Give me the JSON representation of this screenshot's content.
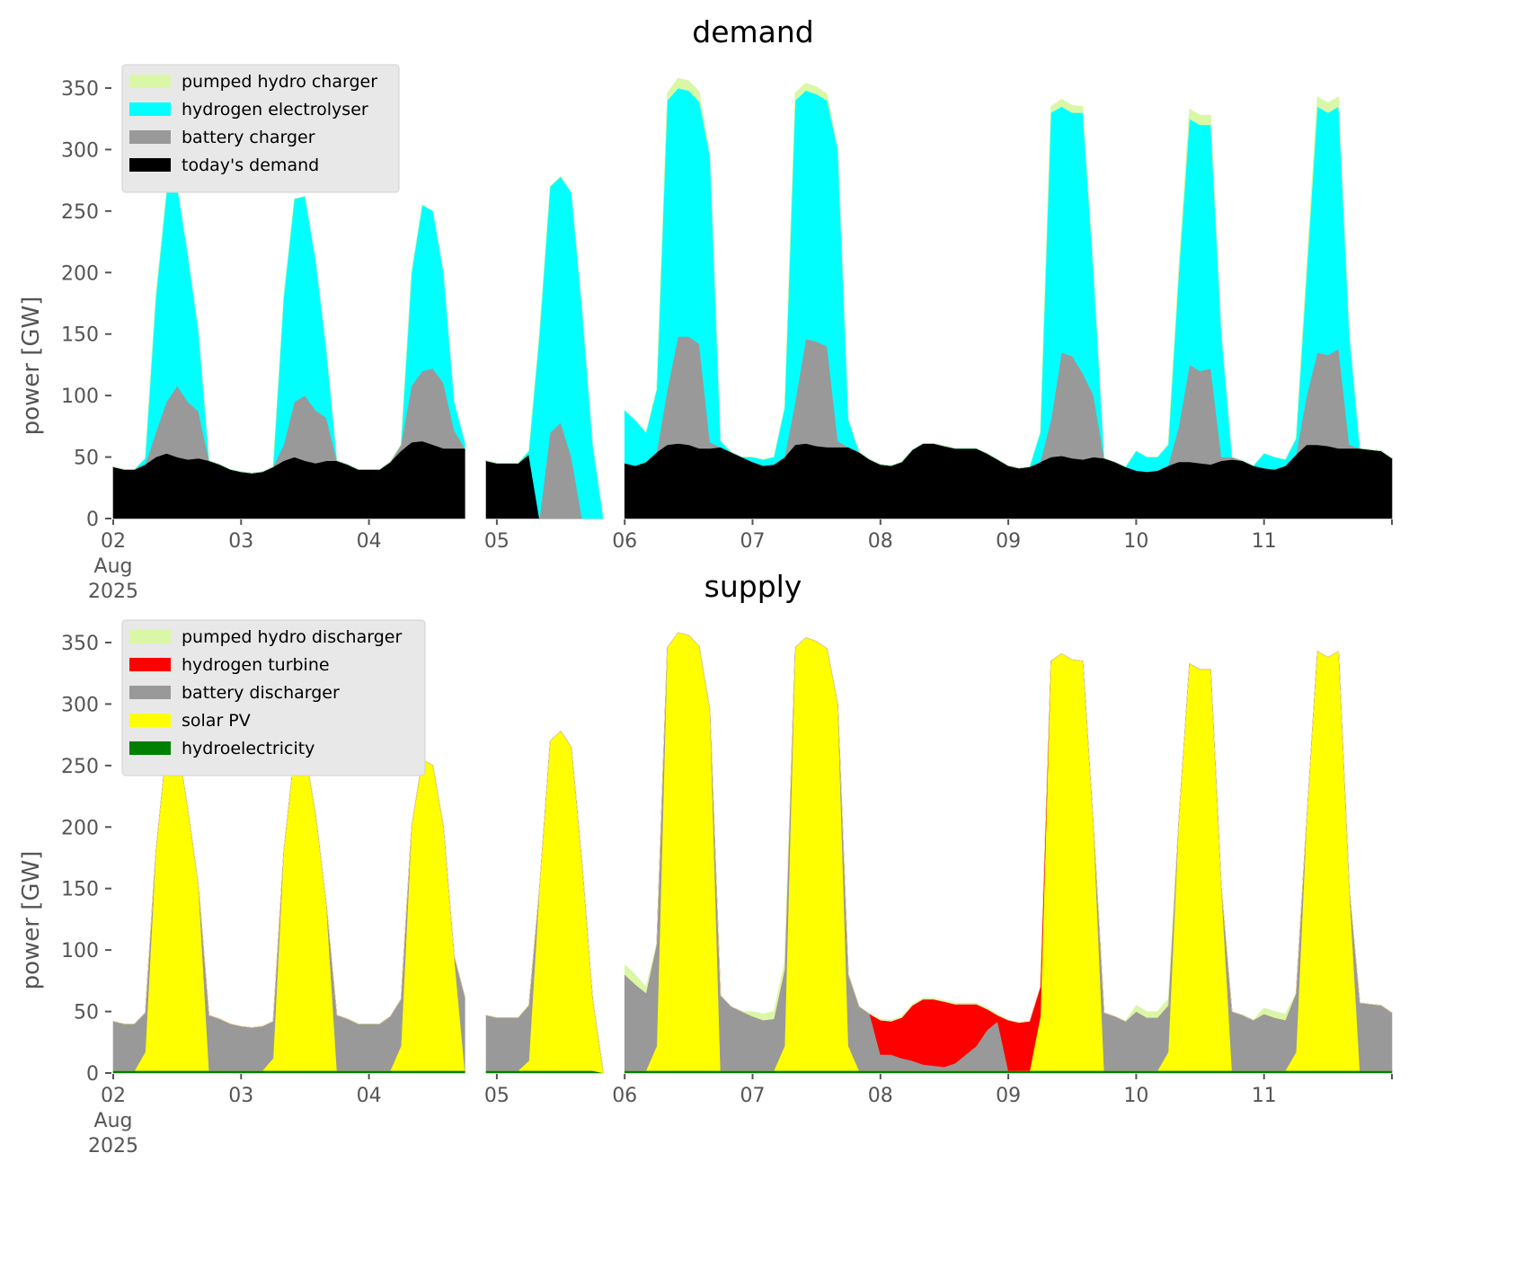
{
  "chart_data": [
    {
      "type": "area",
      "stacked": true,
      "title": "demand",
      "xlabel": "",
      "ylabel": "power [GW]",
      "ylim": [
        0,
        370
      ],
      "yticks": [
        0,
        50,
        100,
        150,
        200,
        250,
        300,
        350
      ],
      "xticks": [
        "02\nAug\n2025",
        "03",
        "04",
        "05",
        "06",
        "07",
        "08",
        "09",
        "10",
        "11"
      ],
      "x_unit": "hours since 2025-08-02 00:00 (2-hourly)",
      "x_start": 0,
      "x_step": 2,
      "legend_position": "top-left",
      "series": [
        {
          "name": "today's demand",
          "color": "#000000",
          "values": [
            42,
            40,
            40,
            44,
            50,
            53,
            50,
            48,
            49,
            47,
            44,
            40,
            38,
            37,
            38,
            42,
            47,
            50,
            47,
            45,
            47,
            47,
            44,
            40,
            40,
            40,
            46,
            55,
            62,
            63,
            60,
            57,
            57,
            57,
            null,
            47,
            45,
            45,
            45,
            52,
            0,
            0,
            0,
            0,
            0,
            0,
            0,
            null,
            45,
            43,
            46,
            54,
            60,
            61,
            60,
            57,
            57,
            58,
            54,
            50,
            46,
            43,
            44,
            50,
            60,
            61,
            59,
            58,
            58,
            58,
            54,
            48,
            44,
            43,
            46,
            56,
            61,
            61,
            59,
            57,
            57,
            57,
            53,
            48,
            43,
            41,
            42,
            46,
            50,
            51,
            49,
            48,
            50,
            49,
            46,
            42,
            39,
            38,
            39,
            43,
            46,
            46,
            45,
            44,
            47,
            48,
            47,
            43,
            41,
            40,
            43,
            52,
            60,
            60,
            59,
            57,
            57,
            57,
            56,
            55,
            49
          ]
        },
        {
          "name": "battery charger",
          "color": "#999999",
          "values": [
            0,
            0,
            0,
            0,
            20,
            42,
            58,
            47,
            38,
            0,
            0,
            0,
            0,
            0,
            0,
            0,
            13,
            45,
            53,
            43,
            35,
            0,
            0,
            0,
            0,
            0,
            0,
            5,
            46,
            57,
            62,
            53,
            15,
            0,
            null,
            0,
            0,
            0,
            0,
            0,
            0,
            70,
            78,
            50,
            0,
            0,
            0,
            null,
            0,
            0,
            0,
            0,
            45,
            87,
            88,
            85,
            5,
            0,
            0,
            0,
            0,
            0,
            0,
            0,
            35,
            85,
            85,
            82,
            5,
            0,
            0,
            0,
            0,
            0,
            0,
            0,
            0,
            0,
            0,
            0,
            0,
            0,
            0,
            0,
            0,
            0,
            0,
            0,
            30,
            84,
            83,
            70,
            50,
            0,
            0,
            0,
            0,
            0,
            0,
            0,
            29,
            79,
            75,
            78,
            3,
            2,
            0,
            0,
            0,
            0,
            0,
            0,
            40,
            75,
            74,
            81,
            3,
            0,
            0,
            0,
            0
          ]
        },
        {
          "name": "hydrogen electrolyser",
          "color": "#00ffff",
          "values": [
            0,
            0,
            0,
            5,
            110,
            170,
            162,
            120,
            65,
            0,
            0,
            0,
            0,
            0,
            0,
            0,
            120,
            165,
            162,
            122,
            55,
            0,
            0,
            0,
            0,
            0,
            0,
            0,
            92,
            135,
            128,
            90,
            23,
            5,
            null,
            0,
            0,
            0,
            0,
            3,
            150,
            200,
            200,
            215,
            170,
            60,
            0,
            null,
            43,
            37,
            24,
            51,
            235,
            202,
            200,
            197,
            233,
            5,
            0,
            0,
            4,
            5,
            6,
            40,
            245,
            202,
            201,
            200,
            237,
            22,
            0,
            0,
            0,
            0,
            0,
            0,
            0,
            0,
            0,
            0,
            0,
            0,
            0,
            0,
            0,
            0,
            0,
            24,
            250,
            200,
            198,
            212,
            100,
            0,
            0,
            0,
            16,
            12,
            11,
            17,
            125,
            200,
            200,
            198,
            100,
            0,
            0,
            0,
            12,
            10,
            5,
            13,
            100,
            200,
            197,
            197,
            90,
            0,
            0,
            0,
            0
          ]
        },
        {
          "name": "pumped hydro charger",
          "color": "#d9f7a6",
          "values": [
            0,
            0,
            0,
            0,
            0,
            0,
            0,
            0,
            0,
            0,
            0,
            0,
            0,
            0,
            0,
            0,
            0,
            0,
            0,
            0,
            0,
            0,
            0,
            0,
            0,
            0,
            0,
            0,
            0,
            0,
            0,
            0,
            0,
            0,
            null,
            0,
            0,
            0,
            0,
            0,
            0,
            0,
            0,
            0,
            0,
            0,
            0,
            null,
            0,
            0,
            0,
            0,
            6,
            8,
            8,
            8,
            0,
            0,
            0,
            0,
            0,
            0,
            0,
            0,
            6,
            6,
            6,
            5,
            0,
            0,
            0,
            0,
            0,
            0,
            0,
            0,
            0,
            0,
            0,
            0,
            0,
            0,
            0,
            0,
            0,
            0,
            0,
            0,
            5,
            6,
            6,
            5,
            0,
            0,
            0,
            0,
            0,
            0,
            0,
            0,
            6,
            8,
            8,
            8,
            0,
            0,
            0,
            0,
            0,
            0,
            0,
            0,
            6,
            8,
            8,
            8,
            0,
            0,
            0,
            0,
            0
          ]
        }
      ]
    },
    {
      "type": "area",
      "stacked": true,
      "title": "supply",
      "xlabel": "",
      "ylabel": "power [GW]",
      "ylim": [
        0,
        370
      ],
      "yticks": [
        0,
        50,
        100,
        150,
        200,
        250,
        300,
        350
      ],
      "xticks": [
        "02\nAug\n2025",
        "03",
        "04",
        "05",
        "06",
        "07",
        "08",
        "09",
        "10",
        "11"
      ],
      "x_unit": "hours since 2025-08-02 00:00 (2-hourly)",
      "x_start": 0,
      "x_step": 2,
      "legend_position": "top-left",
      "series": [
        {
          "name": "hydroelectricity",
          "color": "#008000",
          "values": [
            2,
            2,
            2,
            2,
            2,
            2,
            2,
            2,
            2,
            2,
            2,
            2,
            2,
            2,
            2,
            2,
            2,
            2,
            2,
            2,
            2,
            2,
            2,
            2,
            2,
            2,
            2,
            2,
            2,
            2,
            2,
            2,
            2,
            2,
            null,
            2,
            2,
            2,
            2,
            2,
            2,
            2,
            2,
            2,
            2,
            2,
            0,
            null,
            2,
            2,
            2,
            2,
            2,
            2,
            2,
            2,
            2,
            2,
            2,
            2,
            2,
            2,
            2,
            2,
            2,
            2,
            2,
            2,
            2,
            2,
            2,
            2,
            2,
            2,
            2,
            2,
            2,
            2,
            2,
            2,
            2,
            2,
            2,
            2,
            2,
            2,
            2,
            2,
            2,
            2,
            2,
            2,
            2,
            2,
            2,
            2,
            2,
            2,
            2,
            2,
            2,
            2,
            2,
            2,
            2,
            2,
            2,
            2,
            2,
            2,
            2,
            2,
            2,
            2,
            2,
            2,
            2,
            2,
            2,
            2,
            2
          ]
        },
        {
          "name": "solar PV",
          "color": "#ffff00",
          "values": [
            0,
            0,
            0,
            15,
            178,
            263,
            268,
            213,
            150,
            0,
            0,
            0,
            0,
            0,
            0,
            10,
            178,
            258,
            260,
            208,
            135,
            0,
            0,
            0,
            0,
            0,
            0,
            20,
            198,
            253,
            248,
            198,
            93,
            0,
            null,
            0,
            0,
            0,
            0,
            8,
            148,
            268,
            276,
            263,
            168,
            58,
            0,
            null,
            0,
            0,
            0,
            20,
            344,
            356,
            354,
            345,
            293,
            0,
            0,
            0,
            0,
            0,
            0,
            20,
            344,
            352,
            349,
            343,
            298,
            20,
            0,
            0,
            0,
            0,
            0,
            0,
            0,
            0,
            0,
            0,
            0,
            0,
            0,
            0,
            0,
            0,
            0,
            44,
            333,
            339,
            334,
            333,
            198,
            0,
            0,
            0,
            0,
            0,
            0,
            15,
            204,
            331,
            326,
            326,
            148,
            0,
            0,
            0,
            0,
            0,
            0,
            15,
            204,
            341,
            336,
            341,
            148,
            0,
            0,
            0,
            0
          ]
        },
        {
          "name": "battery discharger",
          "color": "#999999",
          "values": [
            40,
            38,
            38,
            32,
            0,
            0,
            0,
            0,
            0,
            45,
            42,
            38,
            36,
            35,
            36,
            30,
            0,
            0,
            0,
            0,
            0,
            45,
            42,
            38,
            38,
            38,
            44,
            38,
            0,
            0,
            0,
            0,
            0,
            60,
            null,
            45,
            43,
            43,
            43,
            45,
            0,
            0,
            0,
            0,
            0,
            0,
            0,
            null,
            78,
            70,
            63,
            83,
            0,
            0,
            0,
            0,
            0,
            61,
            52,
            48,
            44,
            41,
            42,
            62,
            0,
            0,
            0,
            0,
            0,
            58,
            52,
            46,
            13,
            13,
            10,
            8,
            5,
            4,
            3,
            6,
            13,
            20,
            33,
            40,
            0,
            0,
            0,
            0,
            0,
            0,
            0,
            0,
            0,
            47,
            44,
            40,
            48,
            43,
            43,
            38,
            0,
            0,
            0,
            0,
            0,
            48,
            45,
            41,
            46,
            43,
            41,
            48,
            0,
            0,
            0,
            0,
            0,
            55,
            54,
            53,
            47
          ]
        },
        {
          "name": "hydrogen turbine",
          "color": "#ff0000",
          "values": [
            0,
            0,
            0,
            0,
            0,
            0,
            0,
            0,
            0,
            0,
            0,
            0,
            0,
            0,
            0,
            0,
            0,
            0,
            0,
            0,
            0,
            0,
            0,
            0,
            0,
            0,
            0,
            0,
            0,
            0,
            0,
            0,
            0,
            0,
            null,
            0,
            0,
            0,
            0,
            0,
            0,
            0,
            0,
            0,
            0,
            0,
            0,
            null,
            0,
            0,
            0,
            0,
            0,
            0,
            0,
            0,
            0,
            0,
            0,
            0,
            0,
            0,
            0,
            0,
            0,
            0,
            0,
            0,
            0,
            0,
            0,
            0,
            28,
            27,
            33,
            45,
            53,
            54,
            53,
            48,
            41,
            34,
            17,
            5,
            41,
            39,
            40,
            24,
            0,
            0,
            0,
            0,
            0,
            0,
            0,
            0,
            0,
            0,
            0,
            0,
            0,
            0,
            0,
            0,
            0,
            0,
            0,
            0,
            0,
            0,
            0,
            0,
            0,
            0,
            0,
            0,
            0,
            0,
            0,
            0,
            0
          ]
        },
        {
          "name": "pumped hydro discharger",
          "color": "#d9f7a6",
          "values": [
            0,
            0,
            0,
            0,
            0,
            0,
            0,
            0,
            0,
            0,
            0,
            0,
            0,
            0,
            0,
            0,
            0,
            0,
            0,
            0,
            0,
            0,
            0,
            0,
            0,
            0,
            0,
            0,
            0,
            0,
            0,
            0,
            0,
            0,
            null,
            0,
            0,
            0,
            0,
            0,
            0,
            0,
            0,
            0,
            0,
            0,
            0,
            null,
            8,
            8,
            5,
            0,
            0,
            0,
            0,
            0,
            0,
            0,
            0,
            0,
            4,
            5,
            6,
            6,
            0,
            0,
            0,
            0,
            0,
            0,
            0,
            0,
            1,
            1,
            1,
            1,
            1,
            1,
            1,
            1,
            1,
            1,
            1,
            1,
            0,
            0,
            0,
            0,
            0,
            0,
            0,
            0,
            0,
            0,
            0,
            0,
            5,
            5,
            5,
            5,
            0,
            0,
            0,
            0,
            0,
            0,
            0,
            0,
            5,
            5,
            5,
            0,
            0,
            0,
            0,
            0,
            0,
            0,
            0,
            0,
            0
          ]
        }
      ],
      "legend_order": [
        "pumped hydro discharger",
        "hydrogen turbine",
        "battery discharger",
        "solar PV",
        "hydroelectricity"
      ]
    }
  ]
}
